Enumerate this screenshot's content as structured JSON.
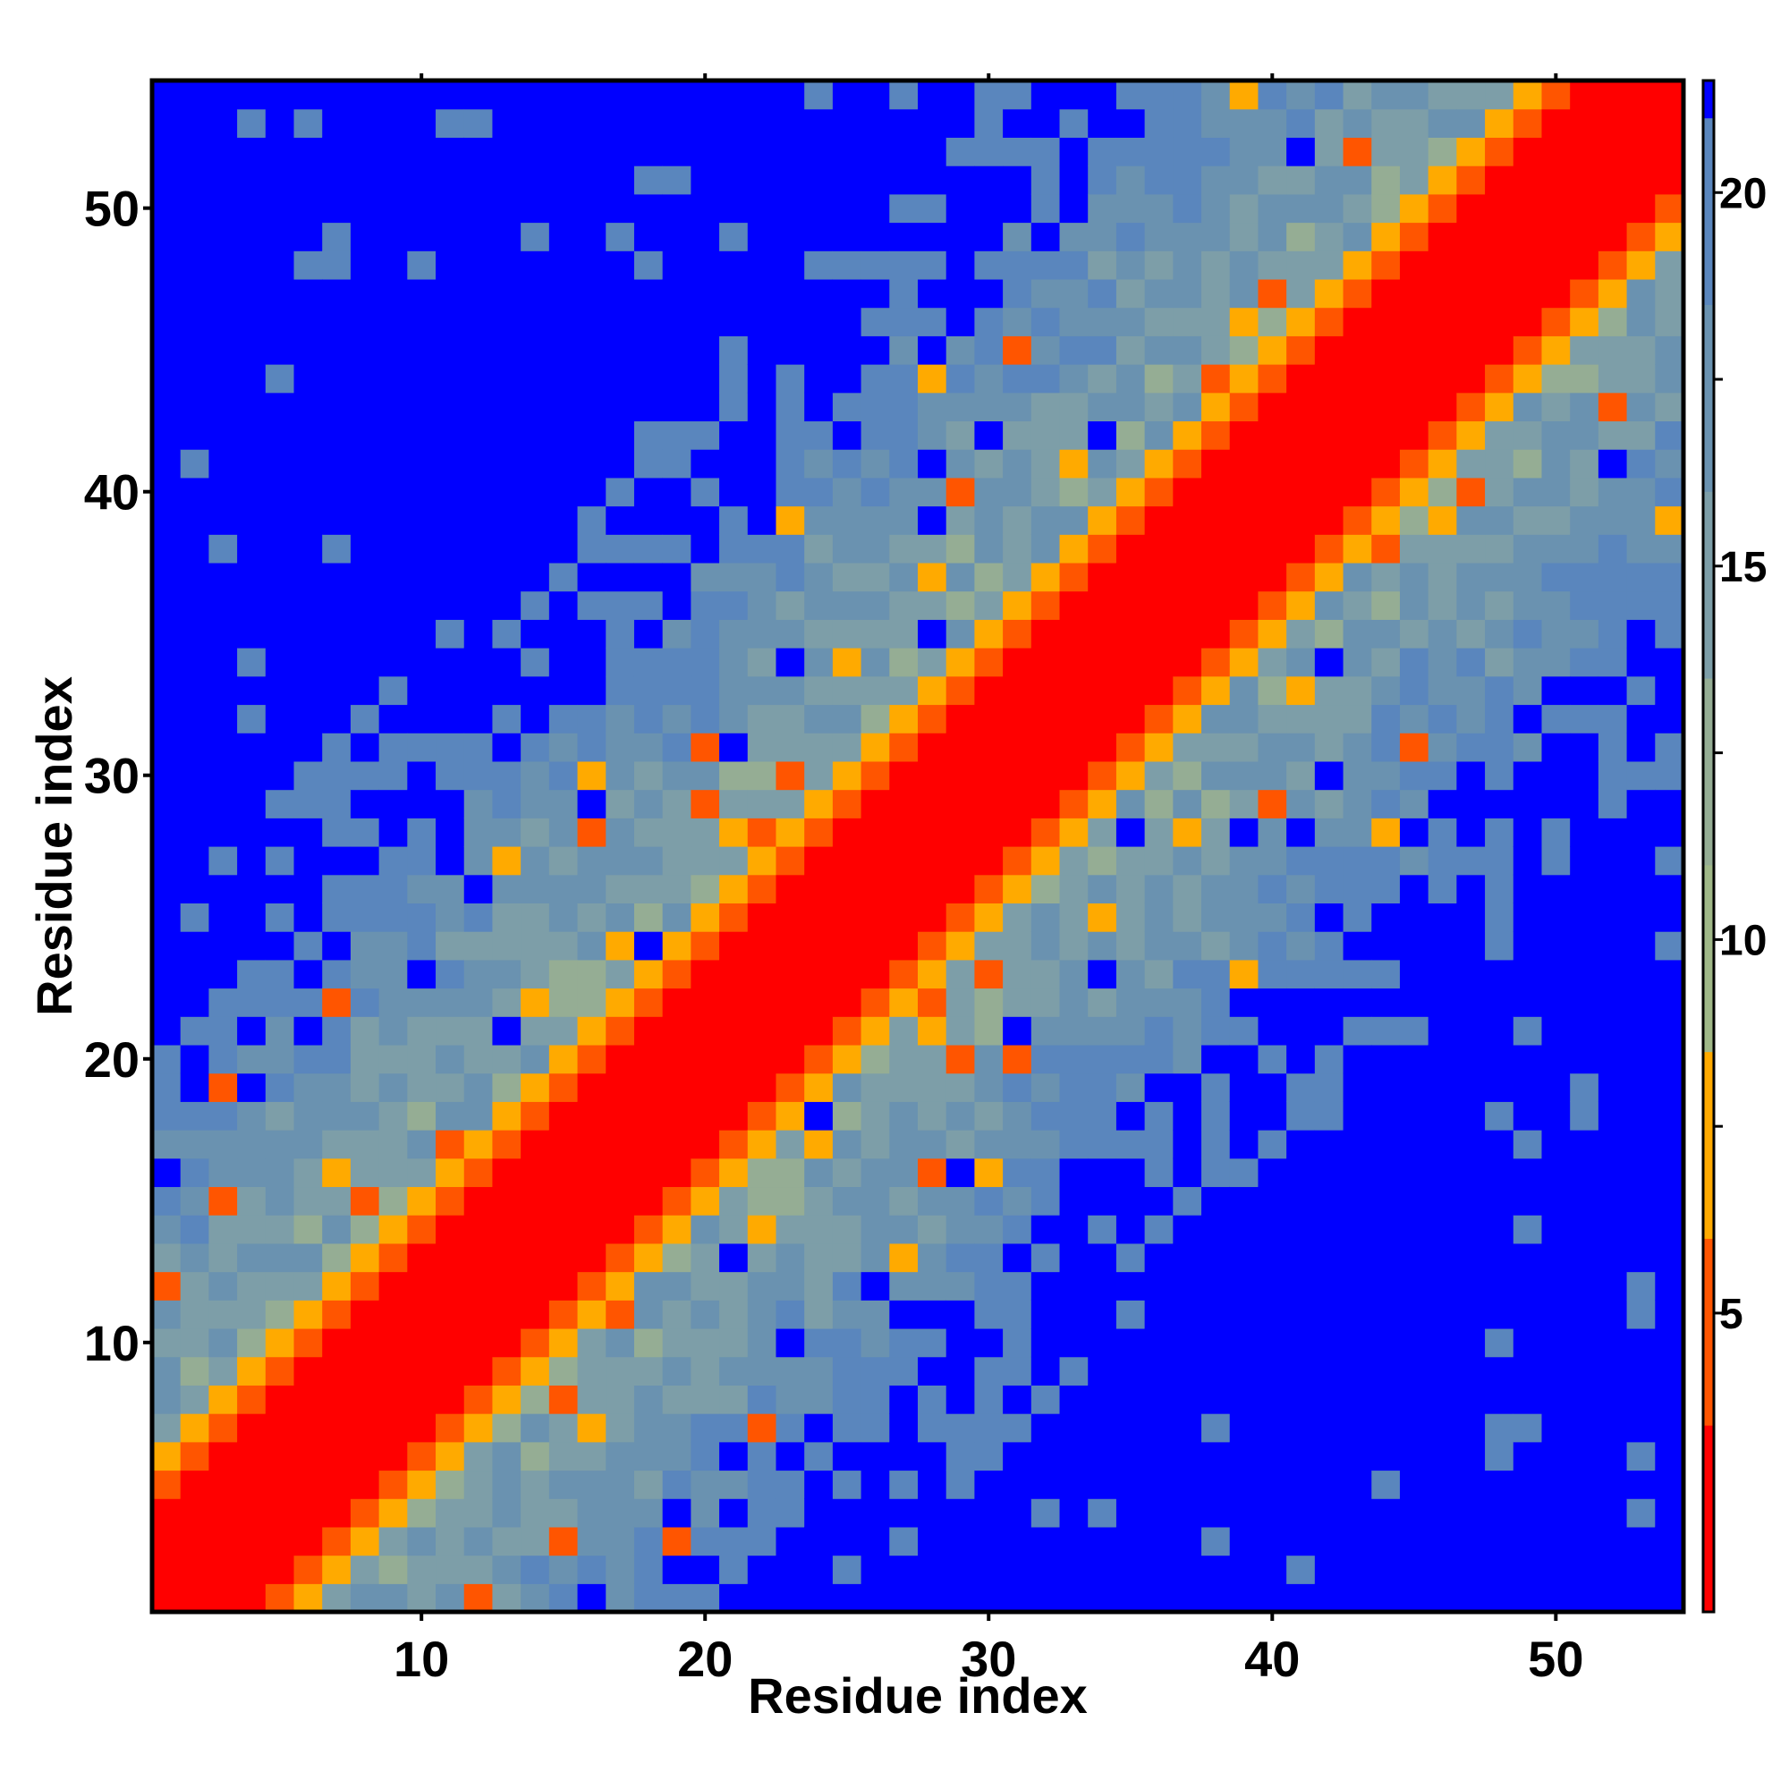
{
  "chart_data": {
    "type": "heatmap",
    "title": "",
    "xlabel": "Residue index",
    "ylabel": "Residue index",
    "n_residues": 54,
    "x_ticks": [
      10,
      20,
      30,
      40,
      50
    ],
    "y_ticks": [
      10,
      20,
      30,
      40,
      50
    ],
    "x_tick_labels": [
      "10",
      "20",
      "30",
      "40",
      "50"
    ],
    "y_tick_labels": [
      "10",
      "20",
      "30",
      "40",
      "50"
    ],
    "xlim": [
      1,
      54
    ],
    "ylim": [
      1,
      54
    ],
    "colorbar": {
      "range": [
        1,
        21.5
      ],
      "ticks": [
        5,
        10,
        15,
        20
      ],
      "tick_labels": [
        "5",
        "10",
        "15",
        "20"
      ],
      "segments": [
        {
          "from": 1,
          "to": 3.5,
          "color": "#ff0000"
        },
        {
          "from": 3.5,
          "to": 6,
          "color": "#ff5500"
        },
        {
          "from": 6,
          "to": 8.5,
          "color": "#ffaa00"
        },
        {
          "from": 8.5,
          "to": 11,
          "color": "#a0b888"
        },
        {
          "from": 11,
          "to": 13.5,
          "color": "#95ad94"
        },
        {
          "from": 13.5,
          "to": 16,
          "color": "#7d9ea8"
        },
        {
          "from": 16,
          "to": 18.5,
          "color": "#6a92b0"
        },
        {
          "from": 18.5,
          "to": 21,
          "color": "#5a86bd"
        },
        {
          "from": 21,
          "to": 21.5,
          "color": "#0000ff"
        }
      ]
    },
    "matrix_description": "symmetric residue distance map; values increase with |i-j|; saturated (>=21) beyond the blue cutoff"
  }
}
